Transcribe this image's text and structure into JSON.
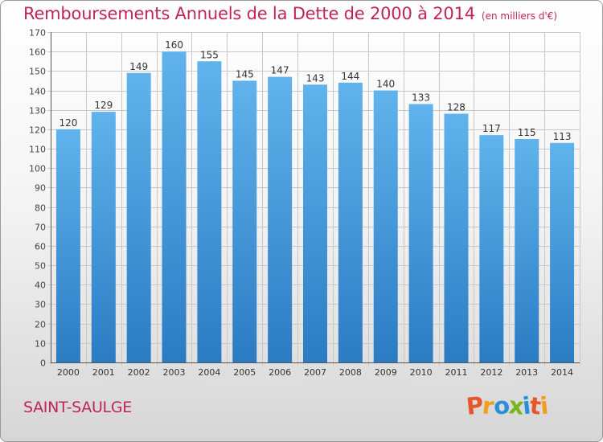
{
  "title": "Remboursements Annuels de la Dette de 2000 à 2014",
  "unit": "(en milliers d'€)",
  "place_name": "SAINT-SAULGE",
  "logo": {
    "text": "Proxiti",
    "colors": [
      "#e7552b",
      "#f59c1a",
      "#2a8fd6",
      "#7ab51d",
      "#2a8fd6",
      "#e7552b",
      "#f59c1a"
    ]
  },
  "colors": {
    "bar_light": "#60b3ec",
    "bar_dark": "#2b7bc3",
    "title": "#c0245b",
    "grid": "#c8c8c8"
  },
  "chart_data": {
    "type": "bar",
    "title": "Remboursements Annuels de la Dette de 2000 à 2014",
    "xlabel": "",
    "ylabel": "",
    "categories": [
      "2000",
      "2001",
      "2002",
      "2003",
      "2004",
      "2005",
      "2006",
      "2007",
      "2008",
      "2009",
      "2010",
      "2011",
      "2012",
      "2013",
      "2014"
    ],
    "values": [
      120,
      129,
      149,
      160,
      155,
      145,
      147,
      143,
      144,
      140,
      133,
      128,
      117,
      115,
      113
    ],
    "ylim": [
      0,
      170
    ],
    "yticks": [
      0,
      10,
      20,
      30,
      40,
      50,
      60,
      70,
      80,
      90,
      100,
      110,
      120,
      130,
      140,
      150,
      160,
      170
    ],
    "grid": true,
    "data_labels": true
  }
}
